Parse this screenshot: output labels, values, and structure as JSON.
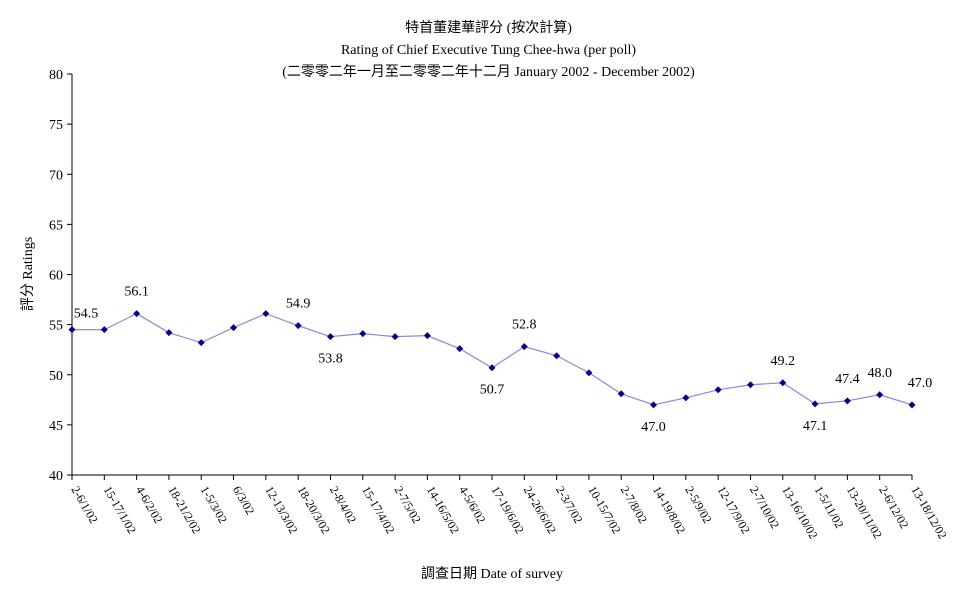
{
  "chart_data": {
    "type": "line",
    "title": "特首董建華評分 (按次計算)",
    "subtitle": "Rating of Chief Executive Tung Chee-hwa (per poll)",
    "subtitle2": "(二零零二年一月至二零零二年十二月 January 2002 - December 2002)",
    "xlabel": "調查日期 Date of survey",
    "ylabel": "評分 Ratings",
    "ylim": [
      40,
      80
    ],
    "yticks": [
      40,
      45,
      50,
      55,
      60,
      65,
      70,
      75,
      80
    ],
    "grid": false,
    "legend": "none",
    "line_color": "#8a8ad6",
    "marker_color": "#00008b",
    "categories": [
      "2-6/1/02",
      "15-17/1/02",
      "4-6/2/02",
      "18-21/2/02",
      "1-5/3/02",
      "6/3/02",
      "12-13/3/02",
      "18-20/3/02",
      "2-8/4/02",
      "15-17/4/02",
      "2-7/5/02",
      "14-16/5/02",
      "4-5/6/02",
      "17-19/6/02",
      "24-26/6/02",
      "2-3/7/02",
      "10-15/7/02",
      "2-7/8/02",
      "14-19/8/02",
      "2-5/9/02",
      "12-17/9/02",
      "2-7/10/02",
      "13-16/10/02",
      "1-5/11/02",
      "13-20/11/02",
      "2-6/12/02",
      "13-18/12/02"
    ],
    "values": [
      54.5,
      54.5,
      56.1,
      54.2,
      53.2,
      54.7,
      56.1,
      54.9,
      53.8,
      54.1,
      53.8,
      53.9,
      52.6,
      50.7,
      52.8,
      51.9,
      50.2,
      48.1,
      47.0,
      47.7,
      48.5,
      49.0,
      49.2,
      47.1,
      47.4,
      48.0,
      47.0
    ],
    "data_labels": [
      {
        "index": 0,
        "text": "54.5"
      },
      {
        "index": 2,
        "text": "56.1"
      },
      {
        "index": 7,
        "text": "54.9"
      },
      {
        "index": 8,
        "text": "53.8"
      },
      {
        "index": 13,
        "text": "50.7"
      },
      {
        "index": 14,
        "text": "52.8"
      },
      {
        "index": 18,
        "text": "47.0"
      },
      {
        "index": 22,
        "text": "49.2"
      },
      {
        "index": 23,
        "text": "47.1"
      },
      {
        "index": 24,
        "text": "47.4"
      },
      {
        "index": 25,
        "text": "48.0"
      },
      {
        "index": 26,
        "text": "47.0"
      }
    ]
  }
}
